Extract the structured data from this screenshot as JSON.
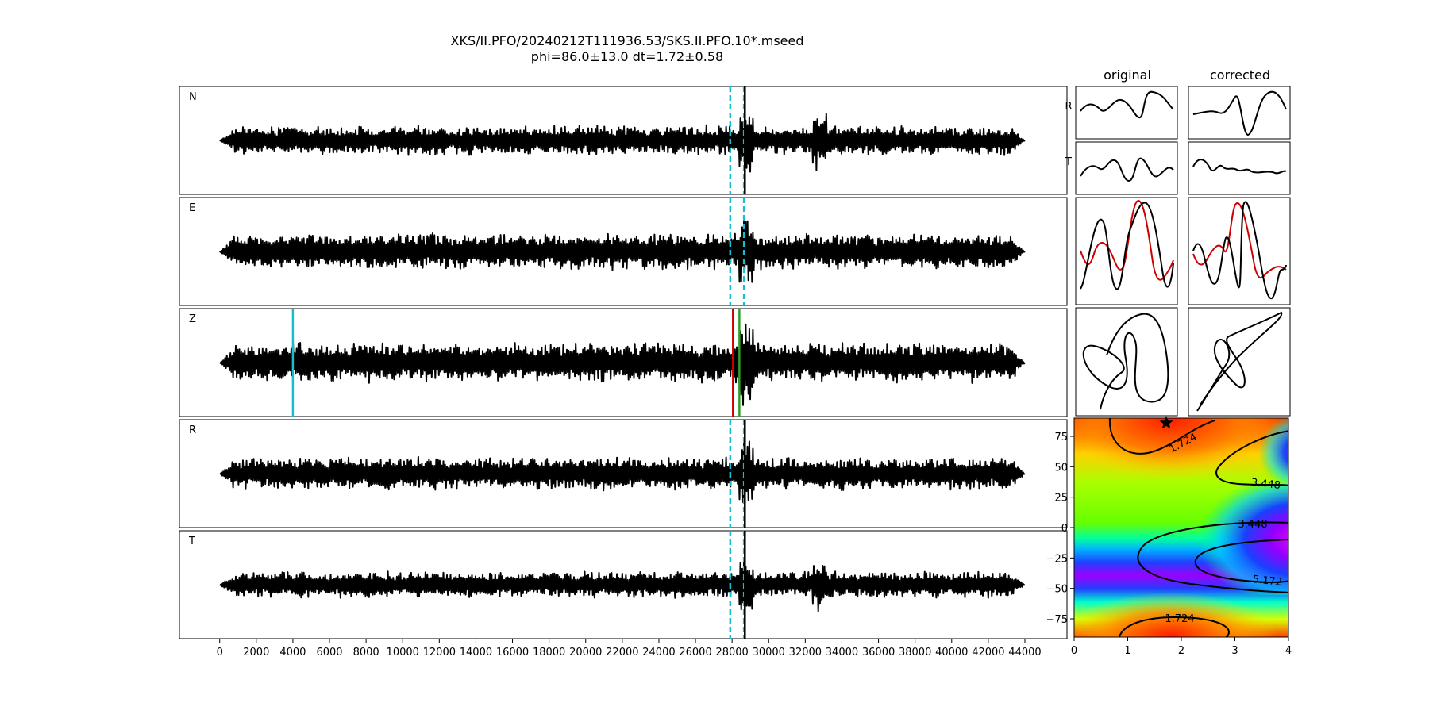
{
  "figure": {
    "title_line1": "XKS/II.PFO/20240212T111936.53/SKS.II.PFO.10*.mseed",
    "title_line2": "phi=86.0±13.0 dt=1.72±0.58"
  },
  "chart_data": [
    {
      "type": "line",
      "name": "waveform-panels",
      "panels": [
        {
          "label": "N",
          "envelope": 0.18,
          "markers": [
            {
              "x": 27900,
              "color": "#17becf",
              "style": "dashed"
            },
            {
              "x": 28650,
              "color": "#17becf",
              "style": "dashed"
            },
            {
              "x": 28700,
              "color": "#000000",
              "style": "solid"
            }
          ]
        },
        {
          "label": "E",
          "envelope": 0.22,
          "markers": [
            {
              "x": 27900,
              "color": "#17becf",
              "style": "dashed"
            },
            {
              "x": 28650,
              "color": "#17becf",
              "style": "dashed"
            }
          ]
        },
        {
          "label": "Z",
          "envelope": 0.24,
          "markers": [
            {
              "x": 4000,
              "color": "#17becf",
              "style": "solid"
            },
            {
              "x": 28050,
              "color": "#cc0000",
              "style": "solid"
            },
            {
              "x": 28400,
              "color": "#2ca02c",
              "style": "solid"
            }
          ]
        },
        {
          "label": "R",
          "envelope": 0.2,
          "markers": [
            {
              "x": 27900,
              "color": "#17becf",
              "style": "dashed"
            },
            {
              "x": 28650,
              "color": "#17becf",
              "style": "dashed"
            },
            {
              "x": 28700,
              "color": "#000000",
              "style": "solid"
            }
          ]
        },
        {
          "label": "T",
          "envelope": 0.16,
          "markers": [
            {
              "x": 27900,
              "color": "#17becf",
              "style": "dashed"
            },
            {
              "x": 28650,
              "color": "#17becf",
              "style": "dashed"
            },
            {
              "x": 28700,
              "color": "#000000",
              "style": "solid"
            }
          ]
        }
      ],
      "x_range": [
        0,
        44000
      ],
      "xlim": [
        -2200,
        46300
      ],
      "xticks": [
        "0",
        "2000",
        "4000",
        "6000",
        "8000",
        "10000",
        "12000",
        "14000",
        "16000",
        "18000",
        "20000",
        "22000",
        "24000",
        "26000",
        "28000",
        "30000",
        "32000",
        "34000",
        "36000",
        "38000",
        "40000",
        "42000",
        "44000"
      ]
    },
    {
      "type": "line",
      "name": "particle-panels",
      "column_titles": [
        "original",
        "corrected"
      ],
      "row_labels": [
        "R",
        "T"
      ]
    },
    {
      "type": "heatmap",
      "name": "error-surface",
      "xlim": [
        0,
        4
      ],
      "ylim": [
        -90,
        90
      ],
      "xticks": [
        "0",
        "1",
        "2",
        "3",
        "4"
      ],
      "yticks": [
        "75",
        "50",
        "25",
        "0",
        "−25",
        "−50",
        "−75"
      ],
      "contour_labels": [
        "1.724",
        "3.448",
        "3.448",
        "5.172",
        "1.724"
      ],
      "best": {
        "dt": 1.72,
        "phi": 86.0
      }
    }
  ]
}
